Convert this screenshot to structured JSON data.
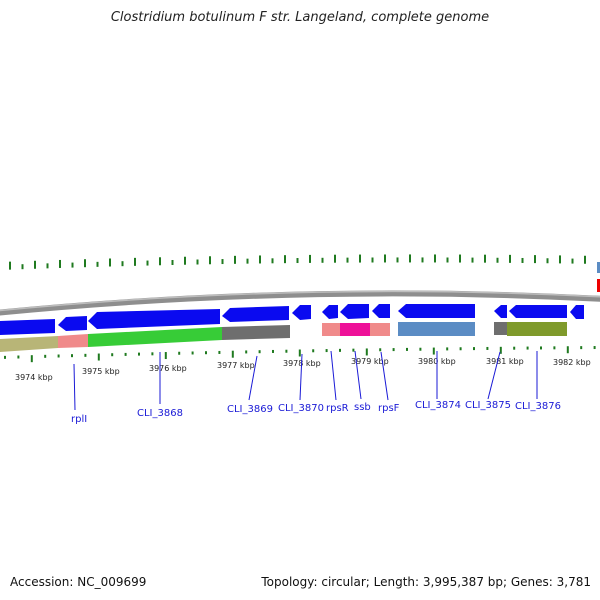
{
  "title": "Clostridium botulinum F str. Langeland, complete genome",
  "footer": {
    "accession": "Accession: NC_009699",
    "stats": "Topology: circular; Length: 3,995,387 bp; Genes: 3,781"
  },
  "colors": {
    "backbone": "#8e8e8e",
    "tick": "#1f7a1f",
    "label": "#1a1ad6",
    "cds_blue": "#0a0af0",
    "gene_tan": "#b8b577",
    "gene_pink": "#f08a8a",
    "gene_green": "#37cc37",
    "gene_gray": "#6e6e6e",
    "gene_magenta": "#ee1199",
    "gene_steel": "#5b8cc4",
    "gene_olive": "#7f9a2b",
    "edge_red": "#ee0000"
  },
  "scale": {
    "unit": "kbp",
    "ticks": [
      "3974 kbp",
      "3975 kbp",
      "3976 kbp",
      "3977 kbp",
      "3978 kbp",
      "3979 kbp",
      "3980 kbp",
      "3981 kbp",
      "3982 kbp"
    ]
  },
  "genes": [
    {
      "name": "rplI",
      "label": "rplI"
    },
    {
      "name": "CLI_3868",
      "label": "CLI_3868"
    },
    {
      "name": "CLI_3869",
      "label": "CLI_3869"
    },
    {
      "name": "CLI_3870",
      "label": "CLI_3870"
    },
    {
      "name": "rpsR",
      "label": "rpsR"
    },
    {
      "name": "ssb",
      "label": "ssb"
    },
    {
      "name": "rpsF",
      "label": "rpsF"
    },
    {
      "name": "CLI_3874",
      "label": "CLI_3874"
    },
    {
      "name": "CLI_3875",
      "label": "CLI_3875"
    },
    {
      "name": "CLI_3876",
      "label": "CLI_3876"
    }
  ]
}
